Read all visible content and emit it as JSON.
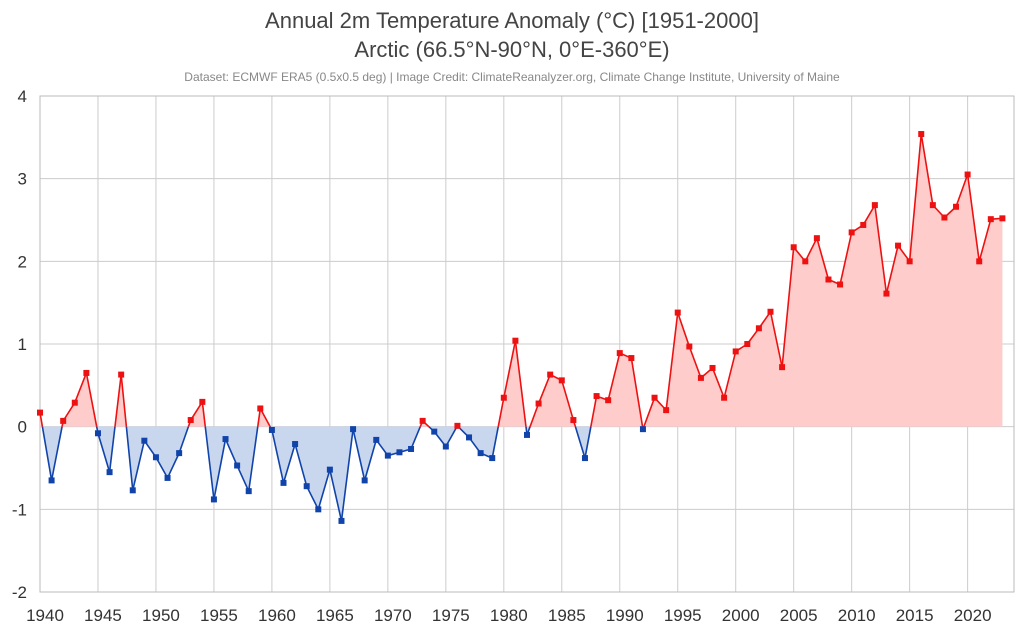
{
  "title_line1": "Annual 2m Temperature Anomaly (°C) [1951-2000]",
  "title_line2": "Arctic (66.5°N-90°N, 0°E-360°E)",
  "credit": "Dataset: ECMWF ERA5 (0.5x0.5 deg) | Image Credit: ClimateReanalyzer.org, Climate Change Institute, University of Maine",
  "colors": {
    "positive_line": "#ee1111",
    "positive_fill": "#ffcccc",
    "negative_line": "#1144aa",
    "negative_fill": "#c8d6ee",
    "grid": "#cccccc"
  },
  "chart_data": {
    "type": "line",
    "title": "Annual 2m Temperature Anomaly (°C) [1951-2000]",
    "subtitle": "Arctic (66.5°N-90°N, 0°E-360°E)",
    "xlabel": "",
    "ylabel": "",
    "xlim": [
      1940,
      2024
    ],
    "ylim": [
      -2,
      4
    ],
    "grid": true,
    "x_ticks": [
      1940,
      1945,
      1950,
      1955,
      1960,
      1965,
      1970,
      1975,
      1980,
      1985,
      1990,
      1995,
      2000,
      2005,
      2010,
      2015,
      2020
    ],
    "y_ticks": [
      -2,
      -1,
      0,
      1,
      2,
      3,
      4
    ],
    "x": [
      1940,
      1941,
      1942,
      1943,
      1944,
      1945,
      1946,
      1947,
      1948,
      1949,
      1950,
      1951,
      1952,
      1953,
      1954,
      1955,
      1956,
      1957,
      1958,
      1959,
      1960,
      1961,
      1962,
      1963,
      1964,
      1965,
      1966,
      1967,
      1968,
      1969,
      1970,
      1971,
      1972,
      1973,
      1974,
      1975,
      1976,
      1977,
      1978,
      1979,
      1980,
      1981,
      1982,
      1983,
      1984,
      1985,
      1986,
      1987,
      1988,
      1989,
      1990,
      1991,
      1992,
      1993,
      1994,
      1995,
      1996,
      1997,
      1998,
      1999,
      2000,
      2001,
      2002,
      2003,
      2004,
      2005,
      2006,
      2007,
      2008,
      2009,
      2010,
      2011,
      2012,
      2013,
      2014,
      2015,
      2016,
      2017,
      2018,
      2019,
      2020,
      2021,
      2022,
      2023
    ],
    "values": [
      0.17,
      -0.65,
      0.07,
      0.29,
      0.65,
      -0.08,
      -0.55,
      0.63,
      -0.77,
      -0.17,
      -0.37,
      -0.62,
      -0.32,
      0.08,
      0.3,
      -0.88,
      -0.15,
      -0.47,
      -0.78,
      0.22,
      -0.04,
      -0.68,
      -0.21,
      -0.72,
      -1.0,
      -0.52,
      -1.14,
      -0.03,
      -0.65,
      -0.16,
      -0.35,
      -0.31,
      -0.27,
      0.07,
      -0.06,
      -0.24,
      0.01,
      -0.13,
      -0.32,
      -0.38,
      0.35,
      1.04,
      -0.1,
      0.28,
      0.63,
      0.56,
      0.08,
      -0.38,
      0.37,
      0.32,
      0.89,
      0.83,
      -0.03,
      0.35,
      0.2,
      1.38,
      0.97,
      0.59,
      0.71,
      0.35,
      0.91,
      1.0,
      1.19,
      1.39,
      0.72,
      2.17,
      2.0,
      2.28,
      1.78,
      1.72,
      2.35,
      2.44,
      2.68,
      1.61,
      2.19,
      2.0,
      3.54,
      2.68,
      2.53,
      2.66,
      3.05,
      2.0,
      2.51,
      2.52
    ]
  }
}
